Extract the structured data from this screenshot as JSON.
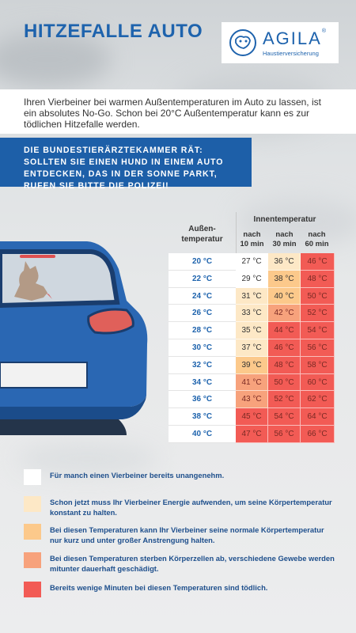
{
  "title": "HITZEFALLE AUTO",
  "logo": {
    "name": "AGILA",
    "reg": "®",
    "subtitle": "Haustierversicherung"
  },
  "intro": "Ihren Vierbeiner bei warmen Außentemperaturen im Auto zu lassen, ist ein absolutes No-Go. Schon bei 20°C Außentemperatur kann es zur tödlichen Hitzefalle werden.",
  "warning": "DIE BUNDESTIERÄRZTEKAMMER RÄT: SOLLTEN SIE EINEN HUND IN EINEM AUTO ENTDECKEN, DAS IN DER SONNE PARKT, RUFEN SIE BITTE DIE POLIZEI!",
  "colors": {
    "brand_blue": "#1e63ad",
    "level0": "#ffffff",
    "level1": "#fde8c6",
    "level2": "#fcc98b",
    "level3": "#f7a27c",
    "level4": "#f25b55"
  },
  "table": {
    "outside_header_line1": "Außen-",
    "outside_header_line2": "temperatur",
    "inside_header": "Innentemperatur",
    "col_headers": [
      {
        "line1": "nach",
        "line2": "10 min"
      },
      {
        "line1": "nach",
        "line2": "30 min"
      },
      {
        "line1": "nach",
        "line2": "60 min"
      }
    ],
    "rows": [
      {
        "outside": "20 °C",
        "cells": [
          {
            "v": "27 °C",
            "level": 0
          },
          {
            "v": "36 °C",
            "level": 1
          },
          {
            "v": "46 °C",
            "level": 4
          }
        ]
      },
      {
        "outside": "22 °C",
        "cells": [
          {
            "v": "29 °C",
            "level": 0
          },
          {
            "v": "38 °C",
            "level": 2
          },
          {
            "v": "48 °C",
            "level": 4
          }
        ]
      },
      {
        "outside": "24 °C",
        "cells": [
          {
            "v": "31 °C",
            "level": 1
          },
          {
            "v": "40 °C",
            "level": 2
          },
          {
            "v": "50 °C",
            "level": 4
          }
        ]
      },
      {
        "outside": "26 °C",
        "cells": [
          {
            "v": "33 °C",
            "level": 1
          },
          {
            "v": "42 °C",
            "level": 3
          },
          {
            "v": "52 °C",
            "level": 4
          }
        ]
      },
      {
        "outside": "28 °C",
        "cells": [
          {
            "v": "35 °C",
            "level": 1
          },
          {
            "v": "44 °C",
            "level": 4
          },
          {
            "v": "54 °C",
            "level": 4
          }
        ]
      },
      {
        "outside": "30 °C",
        "cells": [
          {
            "v": "37 °C",
            "level": 1
          },
          {
            "v": "46 °C",
            "level": 4
          },
          {
            "v": "56 °C",
            "level": 4
          }
        ]
      },
      {
        "outside": "32 °C",
        "cells": [
          {
            "v": "39 °C",
            "level": 2
          },
          {
            "v": "48 °C",
            "level": 4
          },
          {
            "v": "58 °C",
            "level": 4
          }
        ]
      },
      {
        "outside": "34 °C",
        "cells": [
          {
            "v": "41 °C",
            "level": 3
          },
          {
            "v": "50 °C",
            "level": 4
          },
          {
            "v": "60 °C",
            "level": 4
          }
        ]
      },
      {
        "outside": "36 °C",
        "cells": [
          {
            "v": "43 °C",
            "level": 3
          },
          {
            "v": "52 °C",
            "level": 4
          },
          {
            "v": "62 °C",
            "level": 4
          }
        ]
      },
      {
        "outside": "38 °C",
        "cells": [
          {
            "v": "45 °C",
            "level": 4
          },
          {
            "v": "54 °C",
            "level": 4
          },
          {
            "v": "64 °C",
            "level": 4
          }
        ]
      },
      {
        "outside": "40 °C",
        "cells": [
          {
            "v": "47 °C",
            "level": 4
          },
          {
            "v": "56 °C",
            "level": 4
          },
          {
            "v": "66 °C",
            "level": 4
          }
        ]
      }
    ]
  },
  "legend": [
    {
      "level": 0,
      "text": "Für manch einen Vierbeiner bereits unangenehm."
    },
    {
      "level": 1,
      "text": "Schon jetzt muss Ihr Vierbeiner Energie aufwenden, um seine Körpertemperatur konstant zu halten."
    },
    {
      "level": 2,
      "text": "Bei diesen Temperaturen kann Ihr Vierbeiner seine normale Körpertemperatur nur kurz und unter großer Anstrengung halten."
    },
    {
      "level": 3,
      "text": "Bei diesen Temperaturen sterben Körperzellen ab, verschiedene Gewebe werden mitunter dauerhaft geschädigt."
    },
    {
      "level": 4,
      "text": "Bereits wenige Minuten bei diesen Temperaturen sind tödlich."
    }
  ]
}
